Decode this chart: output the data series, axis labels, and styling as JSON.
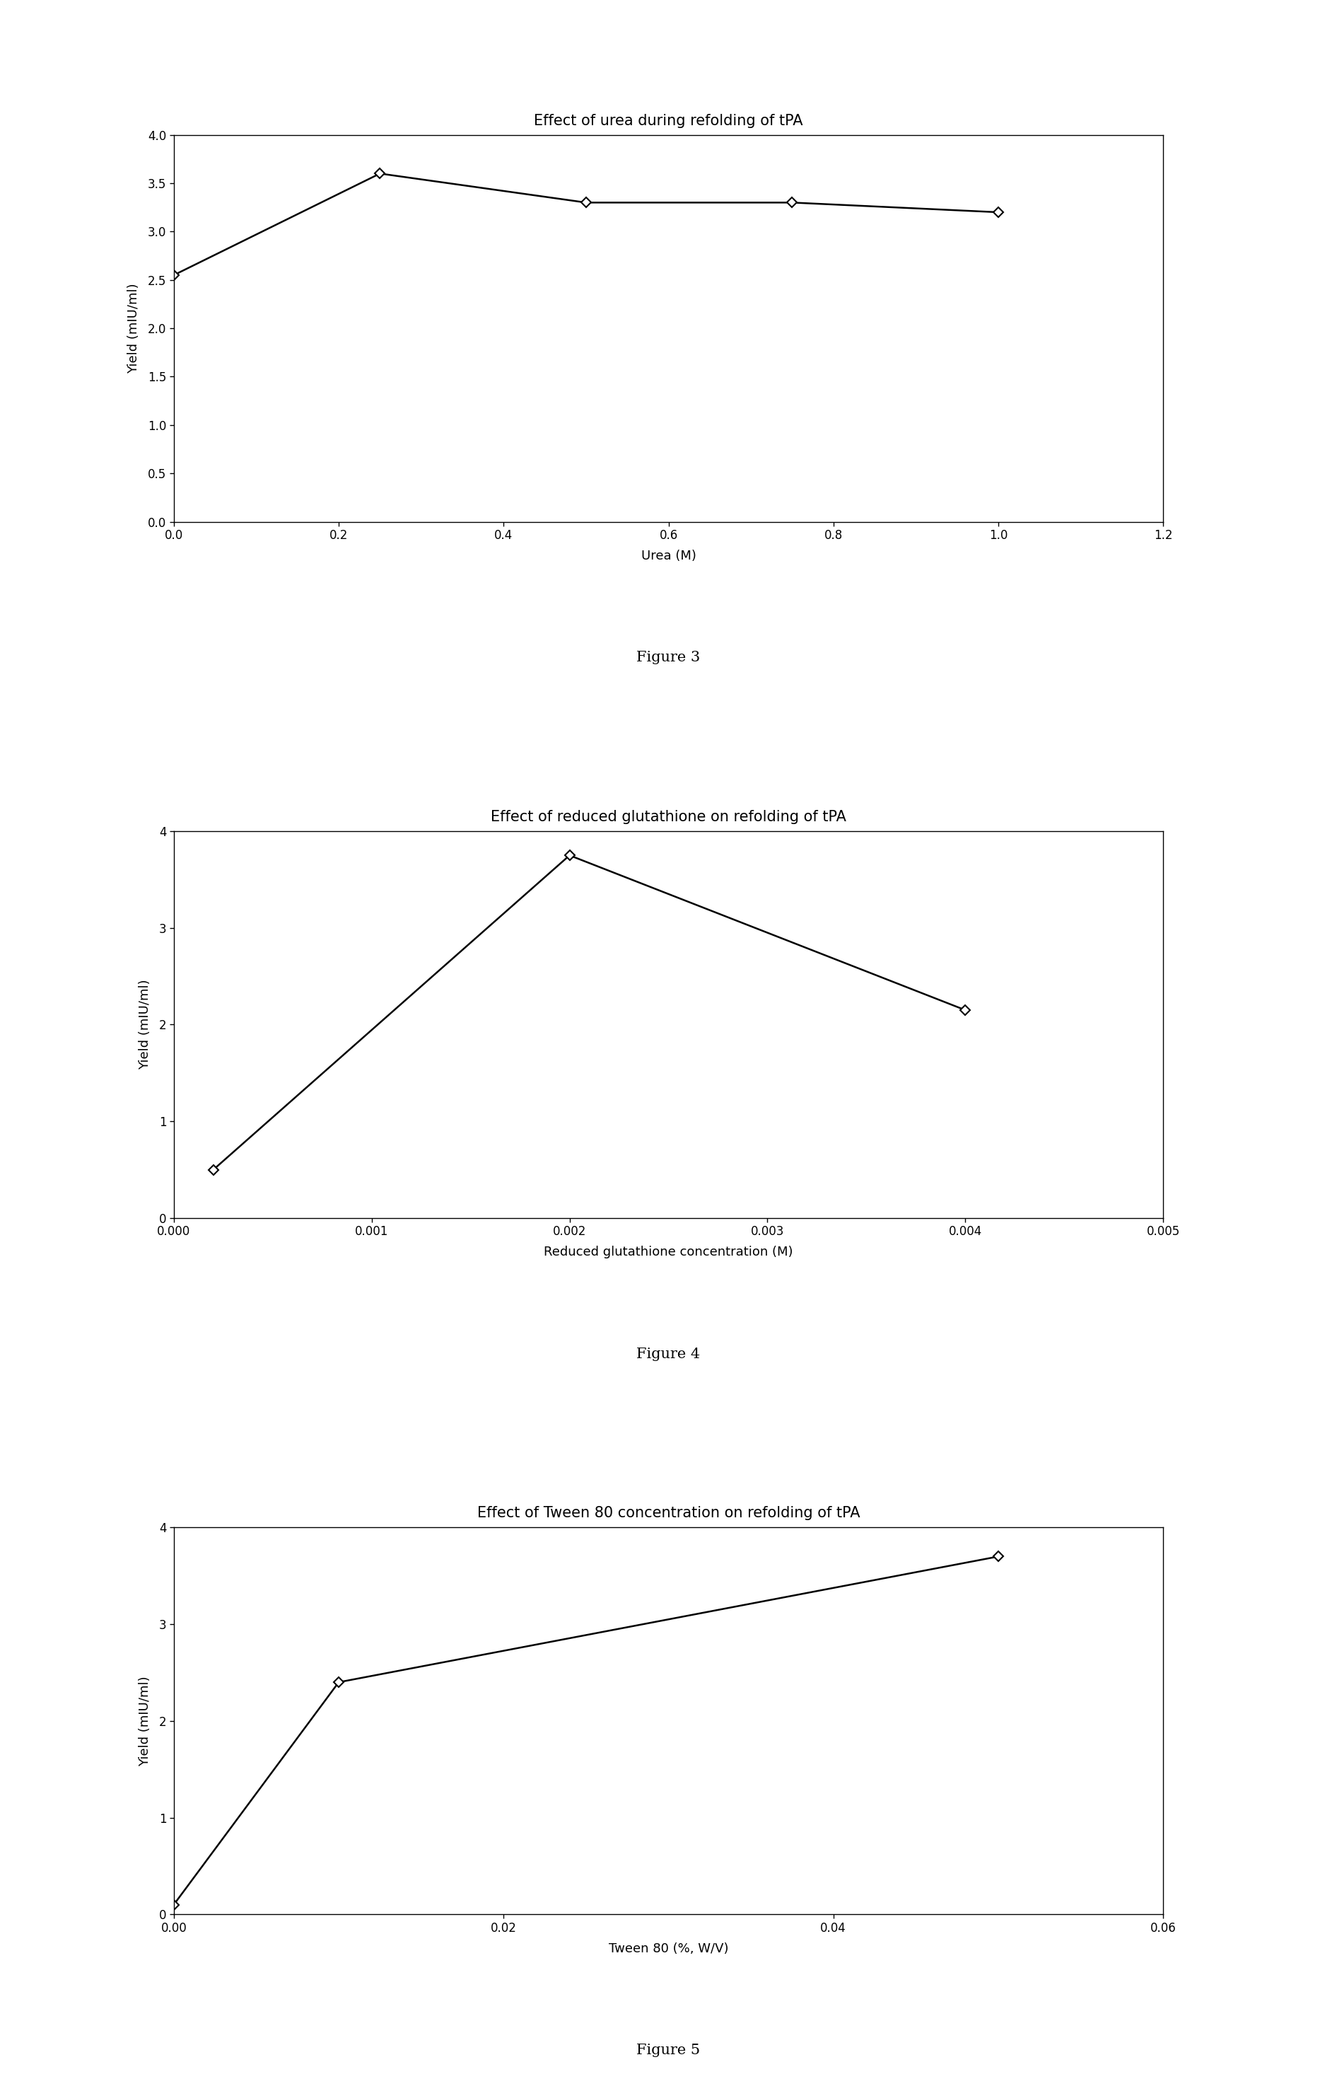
{
  "fig1": {
    "title": "Effect of urea during refolding of tPA",
    "xlabel": "Urea (M)",
    "ylabel": "Yield (mIU/ml)",
    "x": [
      0,
      0.25,
      0.5,
      0.75,
      1.0
    ],
    "y": [
      2.55,
      3.6,
      3.3,
      3.3,
      3.2
    ],
    "xlim": [
      0,
      1.2
    ],
    "ylim": [
      0,
      4
    ],
    "xticks": [
      0,
      0.2,
      0.4,
      0.6,
      0.8,
      1.0,
      1.2
    ],
    "yticks": [
      0,
      0.5,
      1.0,
      1.5,
      2.0,
      2.5,
      3.0,
      3.5,
      4.0
    ],
    "caption": "Figure 3"
  },
  "fig2": {
    "title": "Effect of reduced glutathione on refolding of tPA",
    "xlabel": "Reduced glutathione concentration (M)",
    "ylabel": "Yield (mIU/ml)",
    "x": [
      0.0002,
      0.002,
      0.004
    ],
    "y": [
      0.5,
      3.75,
      2.15
    ],
    "xlim": [
      0,
      0.005
    ],
    "ylim": [
      0,
      4
    ],
    "xticks": [
      0,
      0.001,
      0.002,
      0.003,
      0.004,
      0.005
    ],
    "yticks": [
      0,
      1,
      2,
      3,
      4
    ],
    "caption": "Figure 4"
  },
  "fig3": {
    "title": "Effect of Tween 80 concentration on refolding of tPA",
    "xlabel": "Tween 80 (%, W/V)",
    "ylabel": "Yield (mIU/ml)",
    "x": [
      0,
      0.01,
      0.05
    ],
    "y": [
      0.1,
      2.4,
      3.7
    ],
    "xlim": [
      0,
      0.06
    ],
    "ylim": [
      0,
      4
    ],
    "xticks": [
      0,
      0.02,
      0.04,
      0.06
    ],
    "yticks": [
      0,
      1,
      2,
      3,
      4
    ],
    "caption": "Figure 5"
  },
  "line_color": "#000000",
  "marker": "D",
  "marker_size": 7,
  "marker_facecolor": "white",
  "marker_edgecolor": "#000000",
  "linewidth": 1.8,
  "title_fontsize": 15,
  "label_fontsize": 13,
  "tick_fontsize": 12,
  "caption_fontsize": 15,
  "bg_color": "#ffffff"
}
